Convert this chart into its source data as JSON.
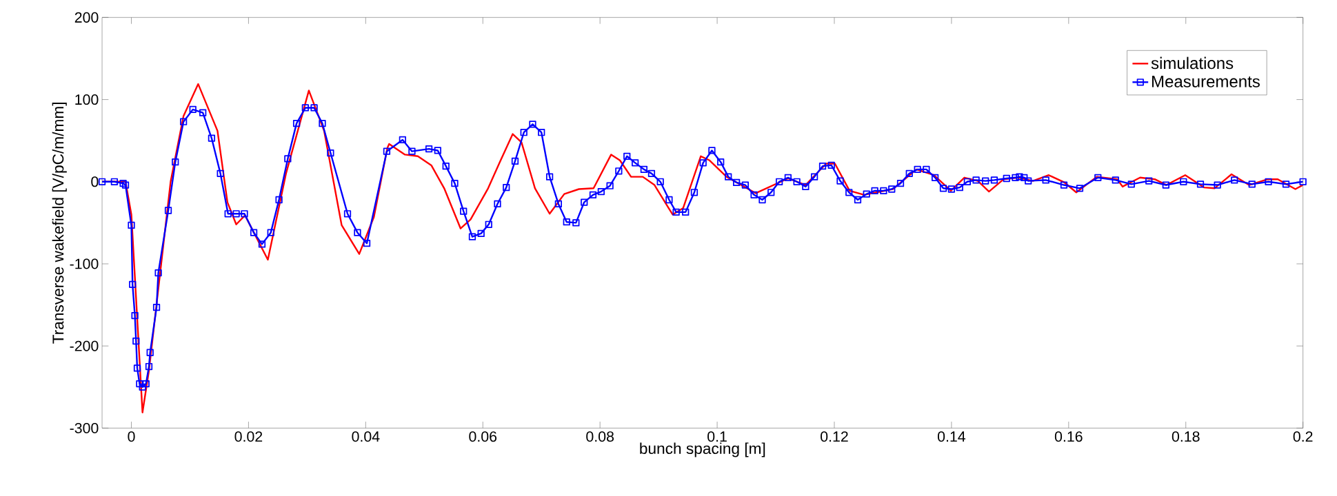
{
  "chart_data": {
    "type": "line",
    "xlabel": "bunch spacing [m]",
    "ylabel": "Transverse wakefield [V/pC/m/mm]",
    "xlim": [
      -0.005,
      0.2
    ],
    "ylim": [
      -300,
      200
    ],
    "xticks": [
      0,
      0.02,
      0.04,
      0.06,
      0.08,
      0.1,
      0.12,
      0.14,
      0.16,
      0.18,
      0.2
    ],
    "yticks": [
      -300,
      -200,
      -100,
      0,
      100,
      200
    ],
    "legend": "top right",
    "line_style": "solid",
    "series": [
      {
        "name": "simulations",
        "color": "#ff0000",
        "marker": "none",
        "x": [
          -0.005,
          -0.001,
          0,
          0.0019,
          0.003,
          0.0067,
          0.0089,
          0.0114,
          0.0147,
          0.0164,
          0.0179,
          0.0194,
          0.0233,
          0.0264,
          0.0303,
          0.0329,
          0.0359,
          0.0389,
          0.0414,
          0.0437,
          0.044,
          0.0467,
          0.0489,
          0.0512,
          0.0534,
          0.0562,
          0.0579,
          0.0609,
          0.0629,
          0.0651,
          0.0666,
          0.0689,
          0.0714,
          0.0739,
          0.0764,
          0.0789,
          0.0819,
          0.0834,
          0.0853,
          0.0873,
          0.0893,
          0.0917,
          0.0924,
          0.0942,
          0.0972,
          0.0987,
          0.1016,
          0.1066,
          0.1121,
          0.1151,
          0.1186,
          0.1201,
          0.1226,
          0.1251,
          0.13,
          0.134,
          0.137,
          0.1399,
          0.1422,
          0.1445,
          0.1464,
          0.1489,
          0.1514,
          0.1539,
          0.1566,
          0.1593,
          0.1613,
          0.1648,
          0.1683,
          0.1692,
          0.1722,
          0.1747,
          0.1767,
          0.1799,
          0.1831,
          0.1849,
          0.1878,
          0.1908,
          0.194,
          0.1957,
          0.1987,
          0.2
        ],
        "values": [
          0,
          0,
          -40,
          -281,
          -230,
          0,
          80,
          119,
          62,
          -25,
          -52,
          -41,
          -95,
          10,
          111,
          62,
          -53,
          -88,
          -43,
          41,
          46,
          33,
          31,
          20,
          -8,
          -57,
          -46,
          -8,
          24,
          58,
          48,
          -8,
          -39,
          -15,
          -9,
          -8,
          33,
          26,
          6,
          6,
          -4,
          -32,
          -40,
          -32,
          31,
          26,
          6,
          -14,
          4,
          -4,
          22,
          22,
          -11,
          -16,
          -9,
          15,
          8,
          -11,
          5,
          1,
          -12,
          3,
          5,
          1,
          8,
          -1,
          -13,
          6,
          3,
          -6,
          5,
          3,
          -4,
          8,
          -7,
          -8,
          9,
          -4,
          3,
          3,
          -9,
          -4
        ]
      },
      {
        "name": "Measurements",
        "color": "#0000ff",
        "marker": "square",
        "x": [
          -0.005,
          -0.0029,
          -0.0014,
          -0.001,
          0,
          0.0002,
          0.0006,
          0.0008,
          0.001,
          0.0014,
          0.0019,
          0.0025,
          0.003,
          0.0032,
          0.0043,
          0.0046,
          0.0063,
          0.0075,
          0.0089,
          0.0105,
          0.0122,
          0.0137,
          0.0152,
          0.0165,
          0.0179,
          0.0193,
          0.0209,
          0.0223,
          0.0238,
          0.0252,
          0.0267,
          0.0282,
          0.0297,
          0.0312,
          0.0326,
          0.034,
          0.0369,
          0.0386,
          0.0402,
          0.0436,
          0.0463,
          0.0479,
          0.0508,
          0.0523,
          0.0537,
          0.0552,
          0.0567,
          0.0582,
          0.0597,
          0.061,
          0.0625,
          0.064,
          0.0655,
          0.067,
          0.0685,
          0.07,
          0.0714,
          0.0729,
          0.0743,
          0.0759,
          0.0773,
          0.0788,
          0.0802,
          0.0817,
          0.0832,
          0.0846,
          0.086,
          0.0875,
          0.0888,
          0.0903,
          0.0918,
          0.093,
          0.0946,
          0.0961,
          0.0976,
          0.0991,
          0.1006,
          0.1019,
          0.1033,
          0.1048,
          0.1063,
          0.1077,
          0.1092,
          0.1106,
          0.1121,
          0.1136,
          0.1151,
          0.1166,
          0.118,
          0.1195,
          0.121,
          0.1225,
          0.124,
          0.1255,
          0.1269,
          0.1284,
          0.1298,
          0.1313,
          0.1328,
          0.1342,
          0.1357,
          0.1372,
          0.1386,
          0.14,
          0.1414,
          0.1427,
          0.1442,
          0.1458,
          0.1473,
          0.1494,
          0.1509,
          0.1516,
          0.1524,
          0.1531,
          0.1561,
          0.1592,
          0.1619,
          0.165,
          0.168,
          0.1707,
          0.1737,
          0.1766,
          0.1796,
          0.1825,
          0.1854,
          0.1883,
          0.1913,
          0.1941,
          0.1971,
          0.2
        ],
        "values": [
          0,
          0,
          -2,
          -4,
          -53,
          -125,
          -163,
          -194,
          -227,
          -246,
          -250,
          -246,
          -225,
          -208,
          -153,
          -111,
          -35,
          24,
          73,
          88,
          84,
          53,
          10,
          -39,
          -39,
          -39,
          -62,
          -76,
          -62,
          -22,
          28,
          71,
          90,
          90,
          71,
          35,
          -39,
          -62,
          -75,
          37,
          51,
          37,
          40,
          38,
          19,
          -2,
          -36,
          -67,
          -63,
          -52,
          -27,
          -7,
          25,
          60,
          70,
          60,
          6,
          -27,
          -49,
          -50,
          -25,
          -16,
          -12,
          -5,
          13,
          31,
          23,
          15,
          10,
          0,
          -22,
          -37,
          -37,
          -13,
          23,
          38,
          24,
          6,
          -1,
          -4,
          -16,
          -22,
          -13,
          0,
          5,
          0,
          -6,
          6,
          19,
          20,
          1,
          -13,
          -22,
          -15,
          -11,
          -11,
          -9,
          -2,
          10,
          15,
          15,
          5,
          -8,
          -9,
          -7,
          0,
          2,
          1,
          2,
          4,
          5,
          6,
          5,
          1,
          2,
          -4,
          -8,
          5,
          2,
          -3,
          1,
          -4,
          0,
          -3,
          -4,
          2,
          -3,
          0,
          -3,
          0
        ]
      }
    ]
  }
}
